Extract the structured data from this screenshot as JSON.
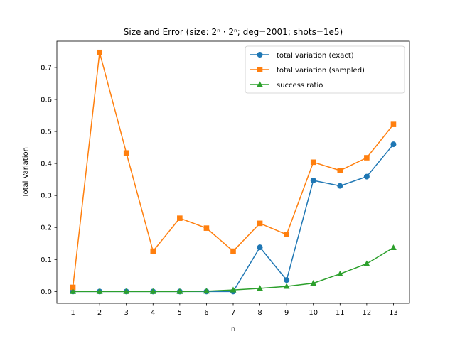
{
  "chart_data": {
    "type": "line",
    "title": "Size and Error (size: 2ⁿ · 2ⁿ; deg=2001; shots=1e5)",
    "xlabel": "n",
    "ylabel": "Total Variation",
    "x": [
      1,
      2,
      3,
      4,
      5,
      6,
      7,
      8,
      9,
      10,
      11,
      12,
      13
    ],
    "xlim": [
      0.4,
      13.6
    ],
    "ylim": [
      -0.037,
      0.782
    ],
    "yticks": [
      0.0,
      0.1,
      0.2,
      0.3,
      0.4,
      0.5,
      0.6,
      0.7
    ],
    "ytick_labels": [
      "0.0",
      "0.1",
      "0.2",
      "0.3",
      "0.4",
      "0.5",
      "0.6",
      "0.7"
    ],
    "grid": false,
    "legend_position": "top-right",
    "series": [
      {
        "name": "total variation (exact)",
        "color": "#1f77b4",
        "marker": "circle",
        "values": [
          0.0,
          0.0,
          0.0,
          0.0,
          0.0,
          0.0,
          0.0,
          0.138,
          0.036,
          0.347,
          0.33,
          0.359,
          0.46
        ]
      },
      {
        "name": "total variation (sampled)",
        "color": "#ff7f0e",
        "marker": "square",
        "values": [
          0.013,
          0.747,
          0.433,
          0.126,
          0.229,
          0.198,
          0.126,
          0.213,
          0.178,
          0.404,
          0.378,
          0.418,
          0.522
        ]
      },
      {
        "name": "success ratio",
        "color": "#2ca02c",
        "marker": "triangle",
        "values": [
          0.0,
          0.0,
          0.0,
          0.0,
          0.0,
          0.001,
          0.005,
          0.01,
          0.016,
          0.026,
          0.055,
          0.087,
          0.137
        ]
      }
    ]
  }
}
